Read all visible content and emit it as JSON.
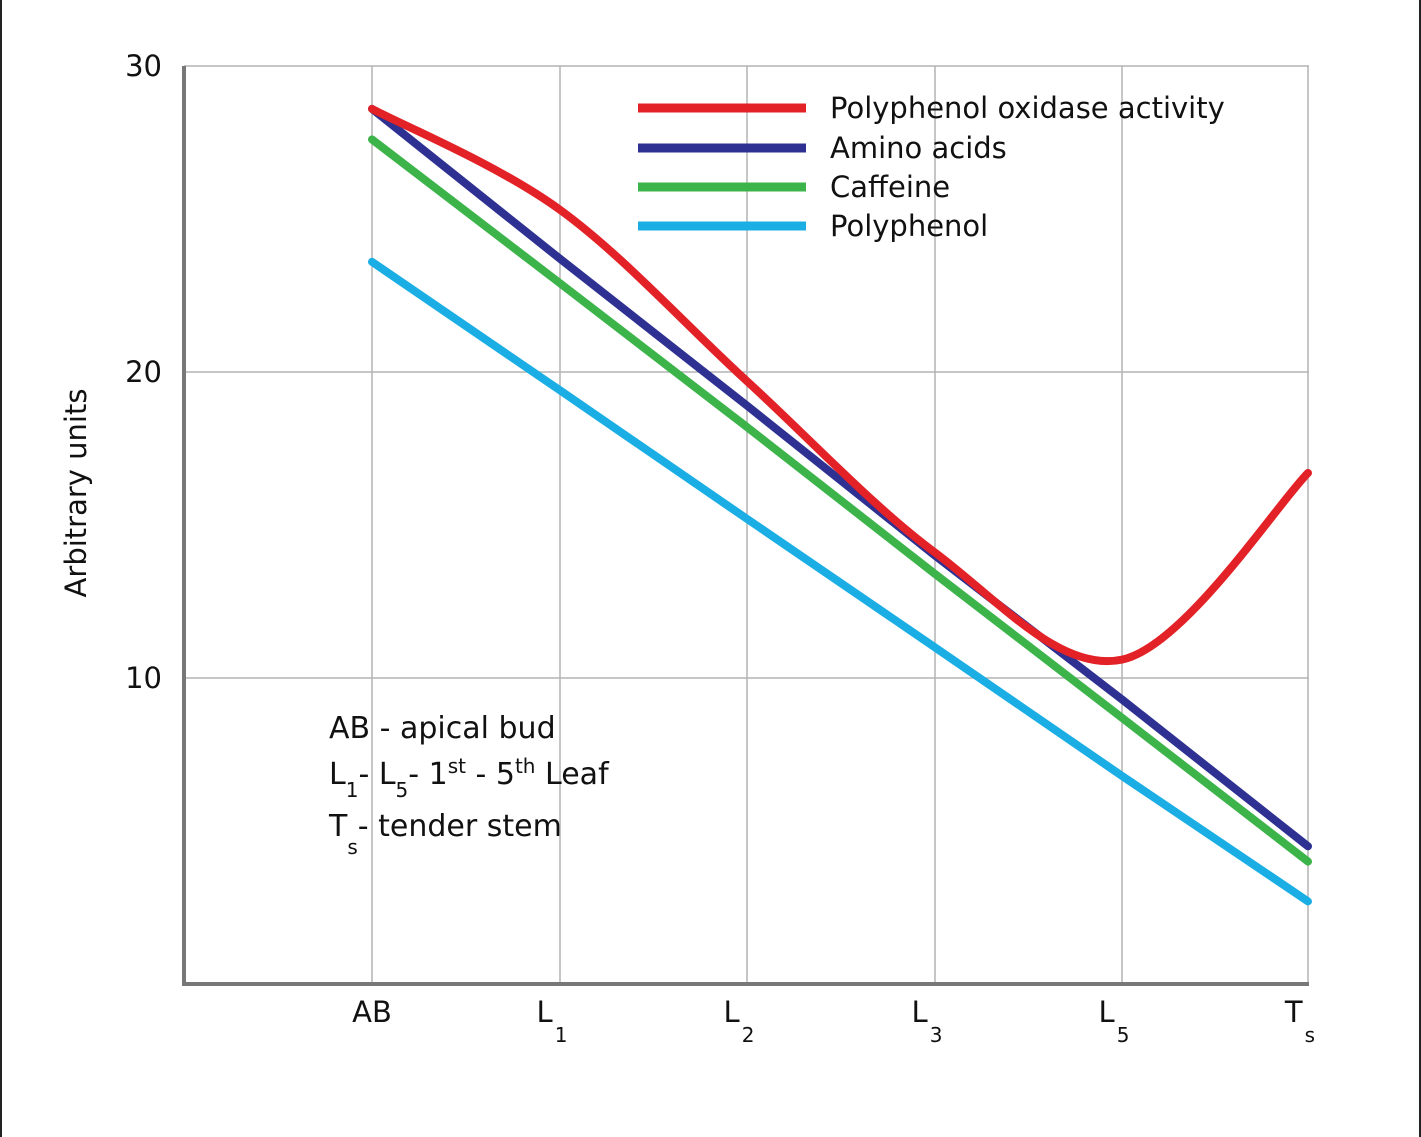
{
  "chart_data": {
    "type": "line",
    "title": "",
    "xlabel": "",
    "ylabel": "Arbitrary units",
    "ylim": [
      0,
      30
    ],
    "yticks": [
      10,
      20,
      30
    ],
    "categories": [
      {
        "main": "AB",
        "sub": ""
      },
      {
        "main": "L",
        "sub": "1"
      },
      {
        "main": "L",
        "sub": "2"
      },
      {
        "main": "L",
        "sub": "3"
      },
      {
        "main": "L",
        "sub": "5"
      },
      {
        "main": "T",
        "sub": "s"
      }
    ],
    "grid": true,
    "legend_position": "top-right",
    "series": [
      {
        "name": "Polyphenol oxidase activity",
        "color": "#e32227",
        "smooth": true,
        "values": [
          28.6,
          25.3,
          19.7,
          14.1,
          10.6,
          16.7
        ]
      },
      {
        "name": "Amino acids",
        "color": "#2e3192",
        "smooth": false,
        "values": [
          28.6,
          23.7,
          18.9,
          14.0,
          9.3,
          4.5
        ]
      },
      {
        "name": "Caffeine",
        "color": "#3cb44a",
        "smooth": false,
        "values": [
          27.6,
          22.9,
          18.2,
          13.4,
          8.7,
          4.0
        ]
      },
      {
        "name": "Polyphenol",
        "color": "#1aaee5",
        "smooth": false,
        "values": [
          23.6,
          19.4,
          15.2,
          11.0,
          6.8,
          2.7
        ]
      }
    ],
    "annotations": {
      "line1": "AB - apical bud",
      "line2": {
        "a": "L",
        "a_sub": "1",
        "b": "- L",
        "b_sub": "5",
        "c": "- 1",
        "c_sup": "st",
        "d": " - 5",
        "d_sup": "th",
        "e": " Leaf"
      },
      "line3": {
        "a": "T",
        "a_sub": "s",
        "b": "- tender stem"
      }
    }
  }
}
